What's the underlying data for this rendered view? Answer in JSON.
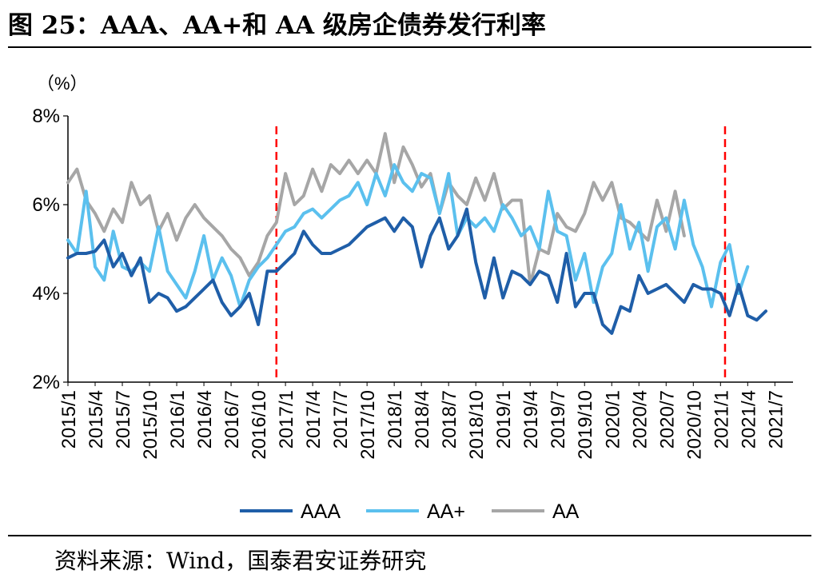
{
  "figure": {
    "title": "图 25：AAA、AA+和 AA 级房企债券发行利率",
    "source": "资料来源：Wind，国泰君安证券研究"
  },
  "chart_data": {
    "type": "line",
    "title": "AAA、AA+和 AA 级房企债券发行利率",
    "unit_label": "（%）",
    "ylim": [
      2,
      8
    ],
    "y_ticks": [
      2,
      4,
      6,
      8
    ],
    "y_tick_labels": [
      "2%",
      "4%",
      "6%",
      "8%"
    ],
    "x_range": [
      0,
      80
    ],
    "x_ticks": [
      0,
      3,
      6,
      9,
      12,
      15,
      18,
      21,
      24,
      27,
      30,
      33,
      36,
      39,
      42,
      45,
      48,
      51,
      54,
      57,
      60,
      63,
      66,
      69,
      72,
      75,
      78
    ],
    "x_tick_labels": [
      "2015/1",
      "2015/4",
      "2015/7",
      "2015/10",
      "2016/1",
      "2016/4",
      "2016/7",
      "2016/10",
      "2017/1",
      "2017/4",
      "2017/7",
      "2017/10",
      "2018/1",
      "2018/4",
      "2018/7",
      "2018/10",
      "2019/1",
      "2019/4",
      "2019/7",
      "2019/10",
      "2020/1",
      "2020/4",
      "2020/7",
      "2020/10",
      "2021/1",
      "2021/4",
      "2021/7"
    ],
    "vlines": [
      {
        "x": 23,
        "label": "2016/11",
        "color": "#ff0000",
        "style": "dashed"
      },
      {
        "x": 72.5,
        "label": "2021/1",
        "color": "#ff0000",
        "style": "dashed"
      }
    ],
    "legend": [
      "AAA",
      "AA+",
      "AA"
    ],
    "legend_position": "bottom",
    "series": [
      {
        "name": "AAA",
        "color": "#1f5ea8",
        "points": [
          [
            0,
            4.8
          ],
          [
            1,
            4.9
          ],
          [
            2,
            4.9
          ],
          [
            3,
            4.95
          ],
          [
            4,
            5.2
          ],
          [
            5,
            4.6
          ],
          [
            6,
            4.9
          ],
          [
            7,
            4.4
          ],
          [
            8,
            4.8
          ],
          [
            9,
            3.8
          ],
          [
            10,
            4.0
          ],
          [
            11,
            3.9
          ],
          [
            12,
            3.6
          ],
          [
            13,
            3.7
          ],
          [
            14,
            3.9
          ],
          [
            15,
            4.1
          ],
          [
            16,
            4.3
          ],
          [
            17,
            3.8
          ],
          [
            18,
            3.5
          ],
          [
            19,
            3.7
          ],
          [
            20,
            4.0
          ],
          [
            21,
            3.3
          ],
          [
            22,
            4.5
          ],
          [
            23,
            4.5
          ],
          [
            24,
            4.7
          ],
          [
            25,
            4.9
          ],
          [
            26,
            5.4
          ],
          [
            27,
            5.1
          ],
          [
            28,
            4.9
          ],
          [
            29,
            4.9
          ],
          [
            30,
            5.0
          ],
          [
            31,
            5.1
          ],
          [
            32,
            5.3
          ],
          [
            33,
            5.5
          ],
          [
            34,
            5.6
          ],
          [
            35,
            5.7
          ],
          [
            36,
            5.4
          ],
          [
            37,
            5.7
          ],
          [
            38,
            5.5
          ],
          [
            39,
            4.6
          ],
          [
            40,
            5.3
          ],
          [
            41,
            5.7
          ],
          [
            42,
            5.0
          ],
          [
            43,
            5.3
          ],
          [
            44,
            5.9
          ],
          [
            45,
            4.7
          ],
          [
            46,
            3.9
          ],
          [
            47,
            4.8
          ],
          [
            48,
            3.9
          ],
          [
            49,
            4.5
          ],
          [
            50,
            4.4
          ],
          [
            51,
            4.2
          ],
          [
            52,
            4.5
          ],
          [
            53,
            4.4
          ],
          [
            54,
            3.8
          ],
          [
            55,
            4.9
          ],
          [
            56,
            3.7
          ],
          [
            57,
            4.0
          ],
          [
            58,
            4.0
          ],
          [
            59,
            3.3
          ],
          [
            60,
            3.1
          ],
          [
            61,
            3.7
          ],
          [
            62,
            3.6
          ],
          [
            63,
            4.4
          ],
          [
            64,
            4.0
          ],
          [
            65,
            4.1
          ],
          [
            66,
            4.2
          ],
          [
            67,
            4.0
          ],
          [
            68,
            3.8
          ],
          [
            69,
            4.2
          ],
          [
            70,
            4.1
          ],
          [
            71,
            4.1
          ],
          [
            72,
            4.0
          ],
          [
            73,
            3.5
          ],
          [
            74,
            4.2
          ],
          [
            75,
            3.5
          ],
          [
            76,
            3.4
          ],
          [
            77,
            3.6
          ]
        ]
      },
      {
        "name": "AA+",
        "color": "#5bc0ee",
        "points": [
          [
            0,
            5.2
          ],
          [
            1,
            4.9
          ],
          [
            2,
            6.3
          ],
          [
            3,
            4.6
          ],
          [
            4,
            4.3
          ],
          [
            5,
            5.4
          ],
          [
            6,
            4.6
          ],
          [
            7,
            4.5
          ],
          [
            8,
            4.7
          ],
          [
            9,
            4.5
          ],
          [
            10,
            5.5
          ],
          [
            11,
            4.5
          ],
          [
            12,
            4.2
          ],
          [
            13,
            3.9
          ],
          [
            14,
            4.5
          ],
          [
            15,
            5.3
          ],
          [
            16,
            4.3
          ],
          [
            17,
            4.8
          ],
          [
            18,
            4.4
          ],
          [
            19,
            3.7
          ],
          [
            20,
            4.3
          ],
          [
            21,
            4.6
          ],
          [
            22,
            4.8
          ],
          [
            23,
            5.1
          ],
          [
            24,
            5.4
          ],
          [
            25,
            5.5
          ],
          [
            26,
            5.8
          ],
          [
            27,
            5.9
          ],
          [
            28,
            5.7
          ],
          [
            29,
            5.9
          ],
          [
            30,
            6.1
          ],
          [
            31,
            6.2
          ],
          [
            32,
            6.5
          ],
          [
            33,
            6.0
          ],
          [
            34,
            6.7
          ],
          [
            35,
            6.2
          ],
          [
            36,
            6.9
          ],
          [
            37,
            6.5
          ],
          [
            38,
            6.3
          ],
          [
            39,
            6.7
          ],
          [
            40,
            6.6
          ],
          [
            41,
            5.8
          ],
          [
            42,
            6.7
          ],
          [
            43,
            5.3
          ],
          [
            44,
            5.7
          ],
          [
            45,
            5.5
          ],
          [
            46,
            5.7
          ],
          [
            47,
            5.4
          ],
          [
            48,
            6.0
          ],
          [
            49,
            5.7
          ],
          [
            50,
            5.3
          ],
          [
            51,
            5.5
          ],
          [
            52,
            5.0
          ],
          [
            53,
            6.3
          ],
          [
            54,
            5.4
          ],
          [
            55,
            5.3
          ],
          [
            56,
            4.3
          ],
          [
            57,
            4.9
          ],
          [
            58,
            3.8
          ],
          [
            59,
            4.6
          ],
          [
            60,
            4.9
          ],
          [
            61,
            6.0
          ],
          [
            62,
            5.0
          ],
          [
            63,
            5.6
          ],
          [
            64,
            4.5
          ],
          [
            65,
            5.5
          ],
          [
            66,
            5.7
          ],
          [
            67,
            5.0
          ],
          [
            68,
            6.1
          ],
          [
            69,
            5.1
          ],
          [
            70,
            4.6
          ],
          [
            71,
            3.7
          ],
          [
            72,
            4.7
          ],
          [
            73,
            5.1
          ],
          [
            74,
            4.0
          ],
          [
            75,
            4.6
          ]
        ]
      },
      {
        "name": "AA",
        "color": "#a6a6a6",
        "points": [
          [
            0,
            6.5
          ],
          [
            1,
            6.8
          ],
          [
            2,
            6.1
          ],
          [
            3,
            5.8
          ],
          [
            4,
            5.4
          ],
          [
            5,
            5.9
          ],
          [
            6,
            5.6
          ],
          [
            7,
            6.5
          ],
          [
            8,
            6.0
          ],
          [
            9,
            6.2
          ],
          [
            10,
            5.4
          ],
          [
            11,
            5.8
          ],
          [
            12,
            5.2
          ],
          [
            13,
            5.7
          ],
          [
            14,
            6.0
          ],
          [
            15,
            5.7
          ],
          [
            16,
            5.5
          ],
          [
            17,
            5.3
          ],
          [
            18,
            5.0
          ],
          [
            19,
            4.8
          ],
          [
            20,
            4.4
          ],
          [
            21,
            4.7
          ],
          [
            22,
            5.3
          ],
          [
            23,
            5.6
          ],
          [
            24,
            6.7
          ],
          [
            25,
            6.0
          ],
          [
            26,
            6.2
          ],
          [
            27,
            6.8
          ],
          [
            28,
            6.3
          ],
          [
            29,
            6.9
          ],
          [
            30,
            6.7
          ],
          [
            31,
            7.0
          ],
          [
            32,
            6.7
          ],
          [
            33,
            7.0
          ],
          [
            34,
            6.7
          ],
          [
            35,
            7.6
          ],
          [
            36,
            6.5
          ],
          [
            37,
            7.3
          ],
          [
            38,
            6.9
          ],
          [
            39,
            6.4
          ],
          [
            40,
            6.7
          ],
          [
            41,
            5.8
          ],
          [
            42,
            6.5
          ],
          [
            43,
            6.2
          ],
          [
            44,
            6.0
          ],
          [
            45,
            6.6
          ],
          [
            46,
            6.1
          ],
          [
            47,
            6.7
          ],
          [
            48,
            5.9
          ],
          [
            49,
            6.1
          ],
          [
            50,
            6.1
          ],
          [
            51,
            4.2
          ],
          [
            52,
            5.0
          ],
          [
            53,
            4.9
          ],
          [
            54,
            5.8
          ],
          [
            55,
            5.5
          ],
          [
            56,
            5.4
          ],
          [
            57,
            5.8
          ],
          [
            58,
            6.5
          ],
          [
            59,
            6.1
          ],
          [
            60,
            6.5
          ],
          [
            61,
            5.7
          ],
          [
            62,
            5.6
          ],
          [
            63,
            5.4
          ],
          [
            64,
            5.2
          ],
          [
            65,
            6.1
          ],
          [
            66,
            5.4
          ],
          [
            67,
            6.3
          ],
          [
            68,
            5.3
          ]
        ]
      }
    ]
  }
}
